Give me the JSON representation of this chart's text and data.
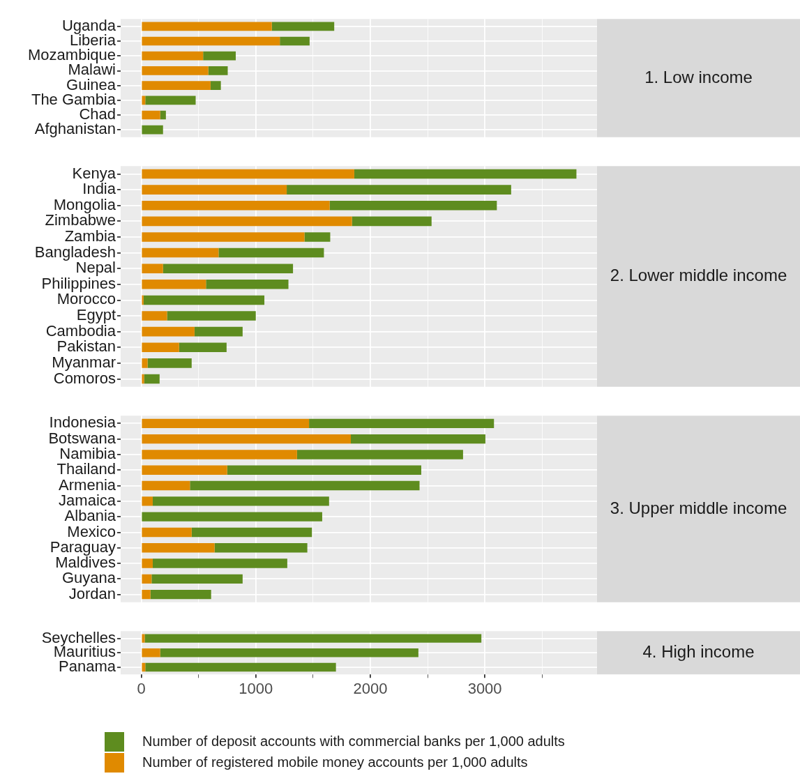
{
  "chart_data": [
    {
      "type": "bar",
      "orientation": "horizontal",
      "stacked": true,
      "annotations": [
        "1. Low income"
      ],
      "categories": [
        "Uganda",
        "Liberia",
        "Mozambique",
        "Malawi",
        "Guinea",
        "The Gambia",
        "Chad",
        "Afghanistan"
      ],
      "series": [
        {
          "color": "#e08a00",
          "values": [
            1140,
            1210,
            540,
            585,
            605,
            35,
            165,
            0
          ]
        },
        {
          "color": "#5e8c1f",
          "values": [
            545,
            260,
            285,
            170,
            90,
            440,
            50,
            190
          ]
        }
      ],
      "xlim": [
        -180,
        3980
      ],
      "xticks": [
        0,
        {
          "value": 500,
          "label": null
        },
        1000,
        {
          "value": 1500,
          "label": null
        },
        2000,
        {
          "value": 2500,
          "label": null
        },
        3000,
        {
          "value": 3500,
          "label": null
        }
      ],
      "grid": true,
      "tick_labels": "y"
    },
    {
      "type": "bar",
      "orientation": "horizontal",
      "stacked": true,
      "annotations": [
        "2. Lower middle income"
      ],
      "categories": [
        "Kenya",
        "India",
        "Mongolia",
        "Zimbabwe",
        "Zambia",
        "Bangladesh",
        "Nepal",
        "Philippines",
        "Morocco",
        "Egypt",
        "Cambodia",
        "Pakistan",
        "Myanmar",
        "Comoros"
      ],
      "series": [
        {
          "color": "#e08a00",
          "values": [
            1860,
            1270,
            1645,
            1840,
            1425,
            675,
            190,
            565,
            20,
            225,
            465,
            330,
            55,
            25
          ]
        },
        {
          "color": "#5e8c1f",
          "values": [
            1940,
            1960,
            1460,
            695,
            225,
            920,
            1135,
            720,
            1055,
            775,
            420,
            415,
            385,
            135
          ]
        }
      ],
      "xlim": [
        -180,
        3980
      ],
      "xticks": [
        0,
        {
          "value": 500,
          "label": null
        },
        1000,
        {
          "value": 1500,
          "label": null
        },
        2000,
        {
          "value": 2500,
          "label": null
        },
        3000,
        {
          "value": 3500,
          "label": null
        }
      ],
      "grid": true,
      "tick_labels": "y"
    },
    {
      "type": "bar",
      "orientation": "horizontal",
      "stacked": true,
      "annotations": [
        "3. Upper middle income"
      ],
      "categories": [
        "Indonesia",
        "Botswana",
        "Namibia",
        "Thailand",
        "Armenia",
        "Jamaica",
        "Albania",
        "Mexico",
        "Paraguay",
        "Maldives",
        "Guyana",
        "Jordan"
      ],
      "series": [
        {
          "color": "#e08a00",
          "values": [
            1465,
            1830,
            1360,
            750,
            425,
            100,
            0,
            440,
            640,
            100,
            90,
            80
          ]
        },
        {
          "color": "#5e8c1f",
          "values": [
            1615,
            1175,
            1450,
            1695,
            2005,
            1540,
            1580,
            1050,
            810,
            1175,
            795,
            530
          ]
        }
      ],
      "xlim": [
        -180,
        3980
      ],
      "xticks": [
        0,
        {
          "value": 500,
          "label": null
        },
        1000,
        {
          "value": 1500,
          "label": null
        },
        2000,
        {
          "value": 2500,
          "label": null
        },
        3000,
        {
          "value": 3500,
          "label": null
        }
      ],
      "grid": true,
      "tick_labels": "y"
    },
    {
      "type": "bar",
      "orientation": "horizontal",
      "stacked": true,
      "annotations": [
        "4. High income"
      ],
      "categories": [
        "Seychelles",
        "Mauritius",
        "Panama"
      ],
      "series": [
        {
          "name": "Number of registered mobile money accounts per 1,000 adults",
          "color": "#e08a00",
          "values": [
            30,
            165,
            35
          ]
        },
        {
          "name": "Number of deposit accounts with commercial banks per 1,000 adults",
          "color": "#5e8c1f",
          "values": [
            2940,
            2255,
            1665
          ]
        }
      ],
      "xlim": [
        -180,
        3980
      ],
      "xticks": [
        0,
        {
          "value": 500,
          "label": null
        },
        1000,
        {
          "value": 1500,
          "label": null
        },
        2000,
        {
          "value": 2500,
          "label": null
        },
        3000,
        {
          "value": 3500,
          "label": null
        }
      ],
      "grid": true,
      "legend": "bottom"
    }
  ]
}
